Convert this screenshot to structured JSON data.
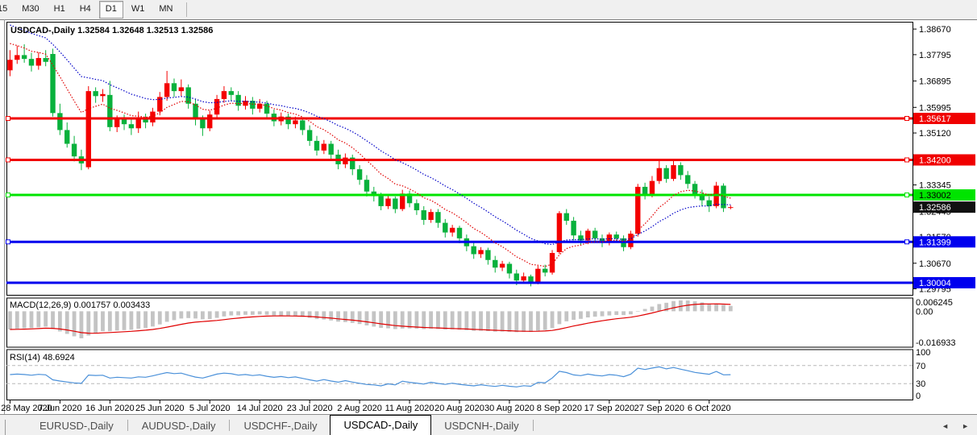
{
  "toolbar": {
    "timeframes": [
      {
        "label": "15",
        "active": false
      },
      {
        "label": "M30",
        "active": false
      },
      {
        "label": "H1",
        "active": false
      },
      {
        "label": "H4",
        "active": false
      },
      {
        "label": "D1",
        "active": true
      },
      {
        "label": "W1",
        "active": false
      },
      {
        "label": "MN",
        "active": false
      }
    ]
  },
  "tabbar": {
    "tabs": [
      {
        "label": "EURUSD-,Daily",
        "active": false
      },
      {
        "label": "AUDUSD-,Daily",
        "active": false
      },
      {
        "label": "USDCHF-,Daily",
        "active": false
      },
      {
        "label": "USDCAD-,Daily",
        "active": true
      },
      {
        "label": "USDCNH-,Daily",
        "active": false
      }
    ],
    "scroll_left_icon": "◄",
    "scroll_right_icon": "►"
  },
  "chart_data": {
    "type": "candlestick",
    "symbol": "USDCAD",
    "timeframe": "Daily",
    "title": "USDCAD-,Daily  1.32584 1.32648 1.32513 1.32586",
    "ohlc_display": {
      "open": "1.32584",
      "high": "1.32648",
      "low": "1.32513",
      "close": "1.32586"
    },
    "colors": {
      "bull_candle": "#f40000",
      "bear_candle": "#08b13c",
      "ma_fast": "#e00000",
      "ma_slow": "#0000c8",
      "red": "#f00000",
      "green": "#00e400",
      "blue": "#0000ee",
      "black_badge": "#111111",
      "macd_hist": "#c4c4c4",
      "macd_signal": "#e00000",
      "rsi_line": "#4a90d9",
      "panel_border": "#000000",
      "dashed_level": "#b8b8b8"
    },
    "price_axis": {
      "min": 1.2959,
      "max": 1.3892,
      "tick_labels": [
        "1.38670",
        "1.37795",
        "1.36895",
        "1.35995",
        "1.35120",
        "1.34245",
        "1.33345",
        "1.32445",
        "1.31570",
        "1.30670",
        "1.29795"
      ]
    },
    "slots_total": 127,
    "x_labels": [
      {
        "label": "28 May 2020",
        "slot": 0
      },
      {
        "label": "7 Jun 2020",
        "slot": 7
      },
      {
        "label": "16 Jun 2020",
        "slot": 14
      },
      {
        "label": "25 Jun 2020",
        "slot": 21
      },
      {
        "label": "5 Jul 2020",
        "slot": 28
      },
      {
        "label": "14 Jul 2020",
        "slot": 35
      },
      {
        "label": "23 Jul 2020",
        "slot": 42
      },
      {
        "label": "2 Aug 2020",
        "slot": 49
      },
      {
        "label": "11 Aug 2020",
        "slot": 56
      },
      {
        "label": "20 Aug 2020",
        "slot": 63
      },
      {
        "label": "30 Aug 2020",
        "slot": 70
      },
      {
        "label": "8 Sep 2020",
        "slot": 77
      },
      {
        "label": "17 Sep 2020",
        "slot": 84
      },
      {
        "label": "27 Sep 2020",
        "slot": 91
      },
      {
        "label": "6 Oct 2020",
        "slot": 98
      }
    ],
    "bars": [
      [
        1.3726,
        1.3795,
        1.3706,
        1.3762
      ],
      [
        1.3762,
        1.381,
        1.3748,
        1.3778
      ],
      [
        1.3778,
        1.3815,
        1.3752,
        1.3765
      ],
      [
        1.3765,
        1.3786,
        1.3722,
        1.3742
      ],
      [
        1.3742,
        1.3788,
        1.3728,
        1.3768
      ],
      [
        1.3768,
        1.3795,
        1.374,
        1.3755
      ],
      [
        1.3782,
        1.38,
        1.3568,
        1.358
      ],
      [
        1.358,
        1.3612,
        1.3505,
        1.3522
      ],
      [
        1.3522,
        1.3548,
        1.3462,
        1.3475
      ],
      [
        1.3475,
        1.3502,
        1.3415,
        1.3432
      ],
      [
        1.3432,
        1.3455,
        1.3385,
        1.3408
      ],
      [
        1.3395,
        1.3672,
        1.3388,
        1.3655
      ],
      [
        1.3655,
        1.3668,
        1.3615,
        1.3638
      ],
      [
        1.3638,
        1.3662,
        1.3618,
        1.3645
      ],
      [
        1.3642,
        1.369,
        1.3518,
        1.3532
      ],
      [
        1.3532,
        1.3572,
        1.3515,
        1.3558
      ],
      [
        1.3558,
        1.3575,
        1.3522,
        1.3542
      ],
      [
        1.3542,
        1.356,
        1.3505,
        1.3528
      ],
      [
        1.3528,
        1.3585,
        1.3512,
        1.3562
      ],
      [
        1.3562,
        1.3578,
        1.3528,
        1.3548
      ],
      [
        1.3548,
        1.3598,
        1.3535,
        1.3585
      ],
      [
        1.3585,
        1.3652,
        1.3572,
        1.3635
      ],
      [
        1.3635,
        1.3724,
        1.3622,
        1.3682
      ],
      [
        1.3682,
        1.3698,
        1.3635,
        1.3655
      ],
      [
        1.3655,
        1.3695,
        1.3638,
        1.3668
      ],
      [
        1.3668,
        1.3678,
        1.3595,
        1.3612
      ],
      [
        1.3612,
        1.3628,
        1.3538,
        1.3558
      ],
      [
        1.3558,
        1.3572,
        1.3502,
        1.3528
      ],
      [
        1.3528,
        1.3588,
        1.3518,
        1.3575
      ],
      [
        1.3575,
        1.3642,
        1.3562,
        1.3628
      ],
      [
        1.3628,
        1.3672,
        1.3615,
        1.3655
      ],
      [
        1.3655,
        1.3668,
        1.3622,
        1.3642
      ],
      [
        1.3642,
        1.3655,
        1.3588,
        1.3605
      ],
      [
        1.3605,
        1.3638,
        1.3592,
        1.3622
      ],
      [
        1.3622,
        1.3635,
        1.3575,
        1.3595
      ],
      [
        1.3595,
        1.3628,
        1.3582,
        1.3612
      ],
      [
        1.3612,
        1.3622,
        1.3562,
        1.3578
      ],
      [
        1.3578,
        1.3592,
        1.3535,
        1.3552
      ],
      [
        1.3552,
        1.3582,
        1.3538,
        1.3568
      ],
      [
        1.3568,
        1.3578,
        1.3525,
        1.3542
      ],
      [
        1.3542,
        1.3568,
        1.3528,
        1.3555
      ],
      [
        1.3555,
        1.3565,
        1.3505,
        1.3522
      ],
      [
        1.3522,
        1.3538,
        1.3468,
        1.3485
      ],
      [
        1.3485,
        1.3502,
        1.3435,
        1.3452
      ],
      [
        1.3452,
        1.3488,
        1.344,
        1.3475
      ],
      [
        1.3475,
        1.3485,
        1.3422,
        1.3438
      ],
      [
        1.3438,
        1.3455,
        1.3388,
        1.3405
      ],
      [
        1.3405,
        1.3442,
        1.3392,
        1.3428
      ],
      [
        1.3428,
        1.3438,
        1.3368,
        1.3388
      ],
      [
        1.3388,
        1.3402,
        1.3335,
        1.3352
      ],
      [
        1.3352,
        1.3368,
        1.3295,
        1.3312
      ],
      [
        1.3312,
        1.3328,
        1.3278,
        1.3296
      ],
      [
        1.3296,
        1.3308,
        1.3248,
        1.3262
      ],
      [
        1.3262,
        1.3302,
        1.3252,
        1.3288
      ],
      [
        1.3288,
        1.3295,
        1.3238,
        1.3252
      ],
      [
        1.3252,
        1.3318,
        1.3245,
        1.3305
      ],
      [
        1.3305,
        1.3315,
        1.3258,
        1.3272
      ],
      [
        1.3272,
        1.3285,
        1.3232,
        1.3248
      ],
      [
        1.3248,
        1.3262,
        1.3198,
        1.3215
      ],
      [
        1.3215,
        1.3252,
        1.3205,
        1.3242
      ],
      [
        1.3242,
        1.3252,
        1.3188,
        1.3205
      ],
      [
        1.3205,
        1.3218,
        1.3155,
        1.3172
      ],
      [
        1.3172,
        1.3198,
        1.3158,
        1.3188
      ],
      [
        1.3188,
        1.3195,
        1.3135,
        1.3152
      ],
      [
        1.3152,
        1.3165,
        1.3108,
        1.3125
      ],
      [
        1.3125,
        1.3138,
        1.3082,
        1.3098
      ],
      [
        1.3098,
        1.3122,
        1.3085,
        1.3112
      ],
      [
        1.3112,
        1.312,
        1.3062,
        1.3078
      ],
      [
        1.3078,
        1.3092,
        1.3035,
        1.3052
      ],
      [
        1.3052,
        1.3075,
        1.304,
        1.3065
      ],
      [
        1.3065,
        1.3072,
        1.3015,
        1.3032
      ],
      [
        1.3032,
        1.3045,
        1.2992,
        1.3008
      ],
      [
        1.3008,
        1.3035,
        1.2998,
        1.3022
      ],
      [
        1.3022,
        1.3028,
        1.2988,
        1.3002
      ],
      [
        1.3002,
        1.3058,
        1.2995,
        1.3048
      ],
      [
        1.3048,
        1.3062,
        1.3022,
        1.3035
      ],
      [
        1.3035,
        1.3112,
        1.3028,
        1.3102
      ],
      [
        1.3105,
        1.3245,
        1.3098,
        1.3238
      ],
      [
        1.3238,
        1.3252,
        1.3198,
        1.3212
      ],
      [
        1.3212,
        1.3225,
        1.3145,
        1.3162
      ],
      [
        1.3162,
        1.3178,
        1.3128,
        1.3145
      ],
      [
        1.3145,
        1.3185,
        1.3132,
        1.3178
      ],
      [
        1.3178,
        1.3188,
        1.3138,
        1.3152
      ],
      [
        1.3152,
        1.3165,
        1.3122,
        1.3138
      ],
      [
        1.3138,
        1.3172,
        1.3128,
        1.3165
      ],
      [
        1.3165,
        1.3175,
        1.3138,
        1.3152
      ],
      [
        1.3152,
        1.3162,
        1.3108,
        1.3122
      ],
      [
        1.3122,
        1.3178,
        1.3115,
        1.3168
      ],
      [
        1.3168,
        1.3338,
        1.3158,
        1.3328
      ],
      [
        1.3328,
        1.3342,
        1.3285,
        1.3302
      ],
      [
        1.3302,
        1.3365,
        1.3292,
        1.3348
      ],
      [
        1.3348,
        1.3418,
        1.3338,
        1.3392
      ],
      [
        1.3392,
        1.3402,
        1.3342,
        1.3355
      ],
      [
        1.3355,
        1.3421,
        1.3348,
        1.3402
      ],
      [
        1.3402,
        1.3412,
        1.3352,
        1.3368
      ],
      [
        1.3368,
        1.3382,
        1.3322,
        1.3338
      ],
      [
        1.3338,
        1.3348,
        1.3288,
        1.3302
      ],
      [
        1.3302,
        1.3318,
        1.3262,
        1.3282
      ],
      [
        1.3282,
        1.3295,
        1.3242,
        1.3262
      ],
      [
        1.3262,
        1.3345,
        1.3255,
        1.3332
      ],
      [
        1.3332,
        1.334,
        1.3242,
        1.3255
      ],
      [
        1.32584,
        1.32648,
        1.32513,
        1.32586
      ]
    ],
    "h_lines": [
      {
        "label": "1.35617",
        "value": 1.35617,
        "color": "red",
        "handles": true
      },
      {
        "label": "1.34200",
        "value": 1.342,
        "color": "red",
        "handles": true
      },
      {
        "label": "1.33002",
        "value": 1.33002,
        "color": "green",
        "handles": true
      },
      {
        "label": "1.31399",
        "value": 1.31399,
        "color": "blue",
        "handles": true
      },
      {
        "label": "1.30004",
        "value": 1.30004,
        "color": "blue",
        "handles": false
      }
    ],
    "current_price": {
      "label": "1.32586",
      "value": 1.32586
    },
    "moving_averages": [
      {
        "name": "fast",
        "period": 10,
        "seed": 1.383
      },
      {
        "name": "slow",
        "period": 22,
        "seed": 1.3892
      }
    ],
    "macd": {
      "label": "MACD(12,26,9) 0.001757 0.003433",
      "fast": 12,
      "slow": 26,
      "signal": 9,
      "value": "0.001757",
      "signal_value": "0.003433",
      "axis_max": 0.006245,
      "axis_min": -0.016933,
      "axis_max_label": "0.006245",
      "axis_zero_label": "0.00",
      "axis_min_label": "-0.016933"
    },
    "rsi": {
      "label": "RSI(14) 48.6924",
      "period": 14,
      "value": "48.6924",
      "levels": [
        70,
        30
      ],
      "axis_labels": [
        {
          "label": "100",
          "value": 100
        },
        {
          "label": "70",
          "value": 70
        },
        {
          "label": "30",
          "value": 30
        },
        {
          "label": "0",
          "value": 0
        }
      ]
    }
  }
}
